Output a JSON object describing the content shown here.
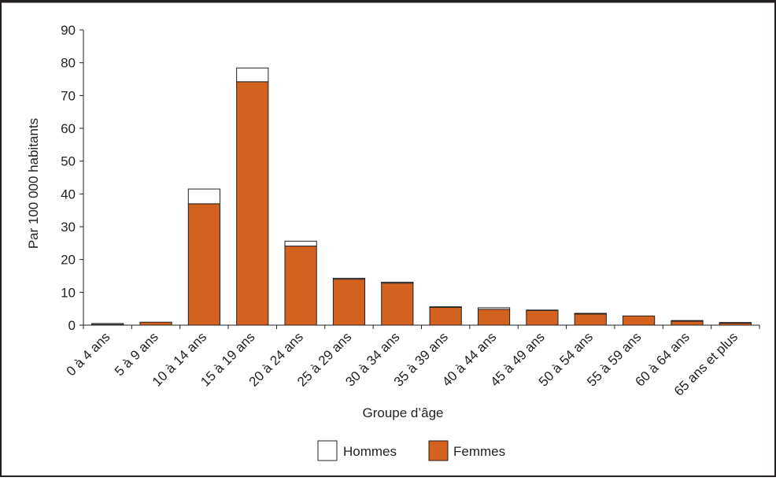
{
  "chart_data": {
    "type": "bar",
    "stacked": true,
    "xlabel": "Groupe d’âge",
    "ylabel": "Par 100 000 habitants",
    "ylim": [
      0,
      90
    ],
    "yticks": [
      0,
      10,
      20,
      30,
      40,
      50,
      60,
      70,
      80,
      90
    ],
    "grid": false,
    "legend_position": "bottom",
    "categories": [
      "0 à 4 ans",
      "5 à 9 ans",
      "10 à 14 ans",
      "15 à 19 ans",
      "20 à 24 ans",
      "25 à 29 ans",
      "30 à 34 ans",
      "35 à 39 ans",
      "40 à 44 ans",
      "45 à 49 ans",
      "50 à 54 ans",
      "55 à 59 ans",
      "60 à 64 ans",
      "65 ans et plus"
    ],
    "series": [
      {
        "name": "Femmes",
        "color": "#d4621f",
        "values": [
          0.2,
          0.9,
          37.0,
          74.2,
          24.1,
          14.0,
          12.8,
          5.4,
          4.8,
          4.5,
          3.4,
          2.8,
          1.2,
          0.6
        ]
      },
      {
        "name": "Hommes",
        "color": "#ffffff",
        "values": [
          0.3,
          0.0,
          4.5,
          4.2,
          1.5,
          0.3,
          0.3,
          0.2,
          0.5,
          0.1,
          0.2,
          0.0,
          0.2,
          0.2
        ]
      }
    ],
    "legend": [
      {
        "label": "Hommes",
        "color": "#ffffff"
      },
      {
        "label": "Femmes",
        "color": "#d4621f"
      }
    ]
  }
}
